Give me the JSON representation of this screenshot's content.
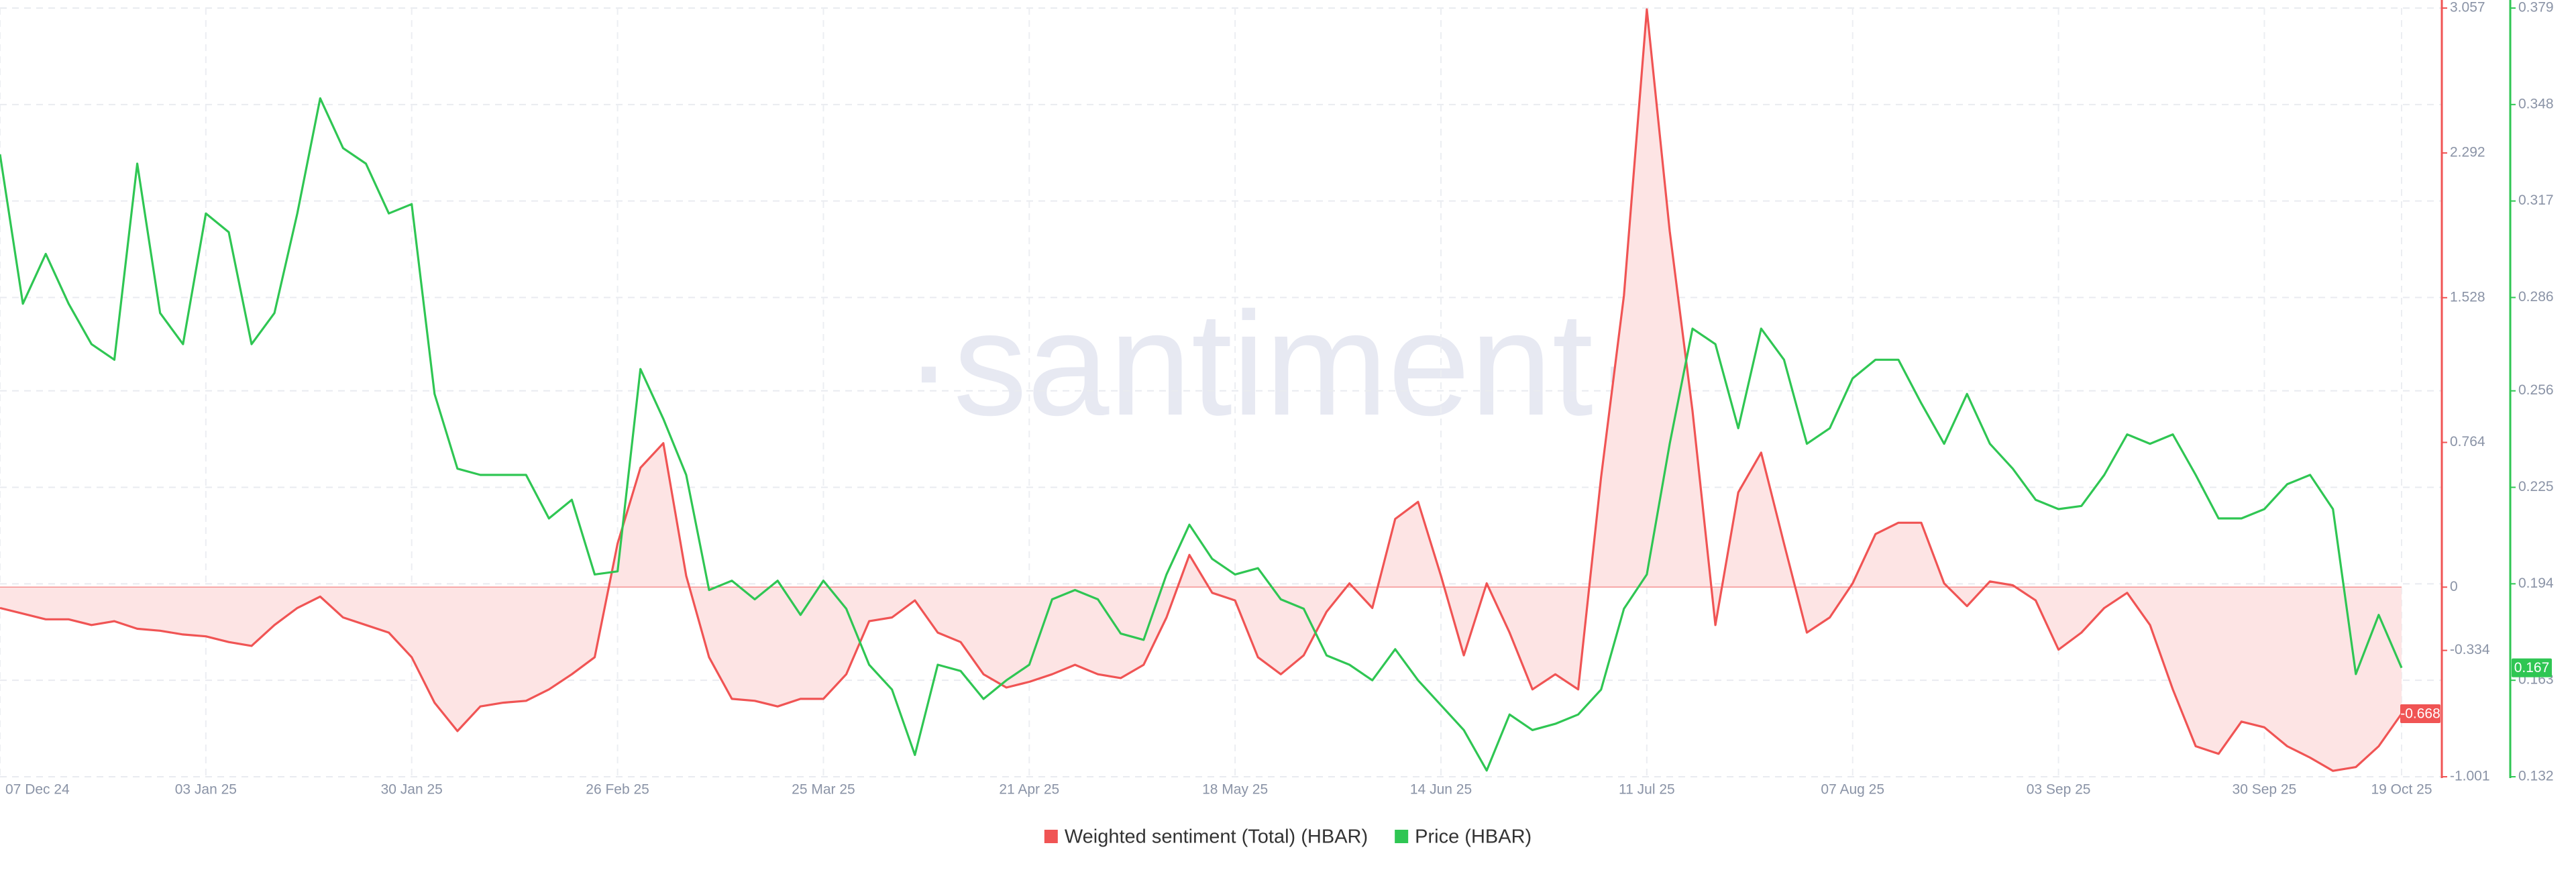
{
  "chart_data": {
    "type": "line",
    "watermark": "·santiment·",
    "categories": [
      "07 Dec 24",
      null,
      null,
      null,
      null,
      null,
      null,
      null,
      null,
      "03 Jan 25",
      null,
      null,
      null,
      null,
      null,
      null,
      null,
      null,
      "30 Jan 25",
      null,
      null,
      null,
      null,
      null,
      null,
      null,
      null,
      "26 Feb 25",
      null,
      null,
      null,
      null,
      null,
      null,
      null,
      null,
      "25 Mar 25",
      null,
      null,
      null,
      null,
      null,
      null,
      null,
      null,
      "21 Apr 25",
      null,
      null,
      null,
      null,
      null,
      null,
      null,
      null,
      "18 May 25",
      null,
      null,
      null,
      null,
      null,
      null,
      null,
      null,
      "14 Jun 25",
      null,
      null,
      null,
      null,
      null,
      null,
      null,
      null,
      "11 Jul 25",
      null,
      null,
      null,
      null,
      null,
      null,
      null,
      null,
      "07 Aug 25",
      null,
      null,
      null,
      null,
      null,
      null,
      null,
      null,
      "03 Sep 25",
      null,
      null,
      null,
      null,
      null,
      null,
      null,
      null,
      "30 Sep 25",
      null,
      null,
      null,
      null,
      null,
      "19 Oct 25"
    ],
    "series": [
      {
        "name": "Weighted sentiment (Total) (HBAR)",
        "color": "#f05454",
        "fill": "#fde4e4",
        "axis": "y",
        "values": [
          -0.11,
          -0.14,
          -0.17,
          -0.17,
          -0.2,
          -0.18,
          -0.22,
          -0.23,
          -0.25,
          -0.26,
          -0.29,
          -0.31,
          -0.2,
          -0.11,
          -0.05,
          -0.16,
          -0.2,
          -0.24,
          -0.37,
          -0.61,
          -0.76,
          -0.63,
          -0.61,
          -0.6,
          -0.54,
          -0.46,
          -0.37,
          0.23,
          0.63,
          0.76,
          0.06,
          -0.37,
          -0.59,
          -0.6,
          -0.63,
          -0.59,
          -0.59,
          -0.46,
          -0.18,
          -0.16,
          -0.07,
          -0.24,
          -0.29,
          -0.46,
          -0.53,
          -0.5,
          -0.46,
          -0.41,
          -0.46,
          -0.48,
          -0.41,
          -0.16,
          0.17,
          -0.03,
          -0.07,
          -0.37,
          -0.46,
          -0.36,
          -0.13,
          0.02,
          -0.11,
          0.36,
          0.45,
          0.06,
          -0.36,
          0.02,
          -0.24,
          -0.54,
          -0.46,
          -0.54,
          0.58,
          1.54,
          3.05,
          1.88,
          0.93,
          -0.2,
          0.5,
          0.71,
          0.23,
          -0.24,
          -0.16,
          0.02,
          0.28,
          0.34,
          0.34,
          0.02,
          -0.1,
          0.03,
          0.01,
          -0.07,
          -0.33,
          -0.24,
          -0.11,
          -0.03,
          -0.2,
          -0.54,
          -0.84,
          -0.88,
          -0.71,
          -0.74,
          -0.84,
          -0.9,
          -0.97,
          -0.95,
          -0.84,
          -0.668
        ]
      },
      {
        "name": "Price (HBAR)",
        "color": "#2fc653",
        "axis": "y2",
        "values": [
          0.332,
          0.284,
          0.3,
          0.284,
          0.271,
          0.266,
          0.329,
          0.281,
          0.271,
          0.313,
          0.307,
          0.271,
          0.281,
          0.313,
          0.35,
          0.334,
          0.329,
          0.313,
          0.316,
          0.255,
          0.231,
          0.229,
          0.229,
          0.229,
          0.215,
          0.221,
          0.197,
          0.198,
          0.263,
          0.247,
          0.229,
          0.192,
          0.195,
          0.189,
          0.195,
          0.184,
          0.195,
          0.186,
          0.168,
          0.16,
          0.139,
          0.168,
          0.166,
          0.157,
          0.163,
          0.168,
          0.189,
          0.192,
          0.189,
          0.178,
          0.176,
          0.197,
          0.213,
          0.202,
          0.197,
          0.199,
          0.189,
          0.186,
          0.171,
          0.168,
          0.163,
          0.173,
          0.163,
          0.155,
          0.147,
          0.134,
          0.152,
          0.147,
          0.149,
          0.152,
          0.16,
          0.186,
          0.197,
          0.239,
          0.276,
          0.271,
          0.244,
          0.276,
          0.266,
          0.239,
          0.244,
          0.26,
          0.266,
          0.266,
          0.252,
          0.239,
          0.255,
          0.239,
          0.231,
          0.221,
          0.218,
          0.219,
          0.229,
          0.242,
          0.239,
          0.242,
          0.229,
          0.215,
          0.215,
          0.218,
          0.226,
          0.229,
          0.218,
          0.165,
          0.184,
          0.167
        ]
      }
    ],
    "ylim": [
      -1.001,
      3.057
    ],
    "yticks": [
      -1.001,
      -0.334,
      0,
      0.764,
      1.528,
      2.292,
      3.057
    ],
    "y2lim": [
      0.132,
      0.379
    ],
    "y2ticks": [
      0.132,
      0.163,
      0.194,
      0.225,
      0.256,
      0.286,
      0.317,
      0.348,
      0.379
    ],
    "grid": true,
    "legend": "bottom"
  }
}
